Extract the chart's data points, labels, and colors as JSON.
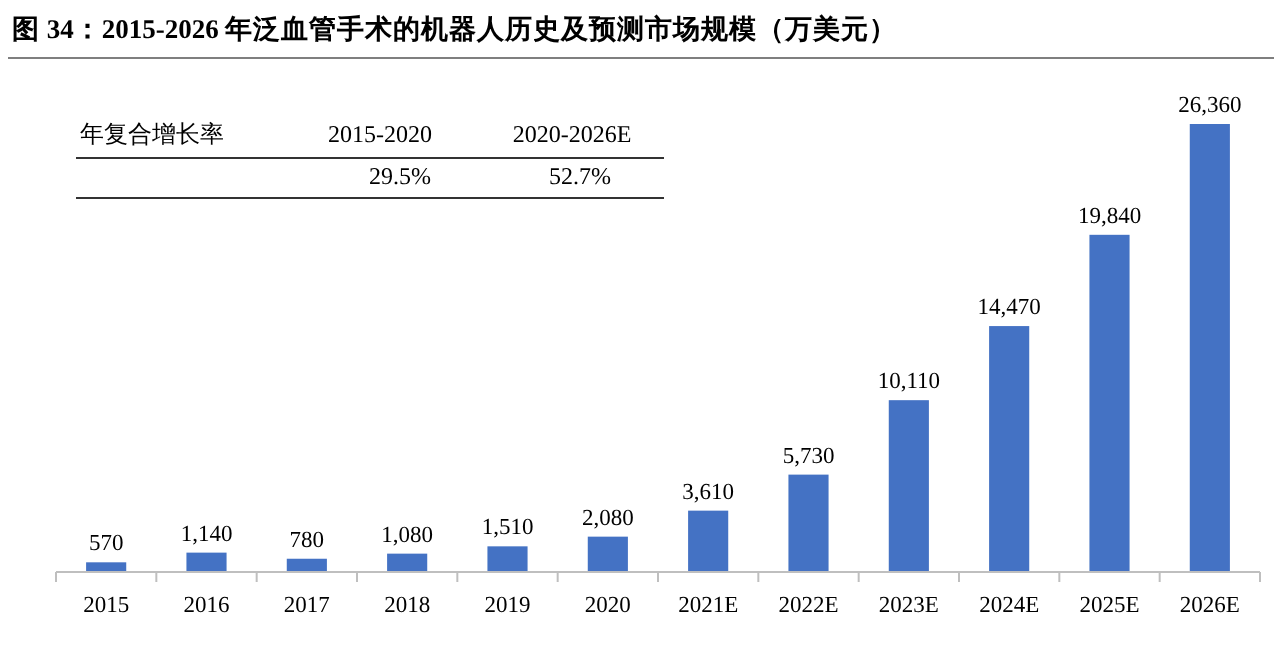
{
  "chart_data": {
    "type": "bar",
    "title": "图 34：2015-2026 年泛血管手术的机器人历史及预测市场规模（万美元）",
    "categories": [
      "2015",
      "2016",
      "2017",
      "2018",
      "2019",
      "2020",
      "2021E",
      "2022E",
      "2023E",
      "2024E",
      "2025E",
      "2026E"
    ],
    "values": [
      570,
      1140,
      780,
      1080,
      1510,
      2080,
      3610,
      5730,
      10110,
      14470,
      19840,
      26360
    ],
    "color": "#4472c4",
    "value_labels": [
      "570",
      "1,140",
      "780",
      "1,080",
      "1,510",
      "2,080",
      "3,610",
      "5,730",
      "10,110",
      "14,470",
      "19,840",
      "26,360"
    ],
    "annotations": [
      "年复合增长率",
      "2015-2020",
      "2020-2026E",
      "29.5%",
      "52.7%"
    ]
  }
}
